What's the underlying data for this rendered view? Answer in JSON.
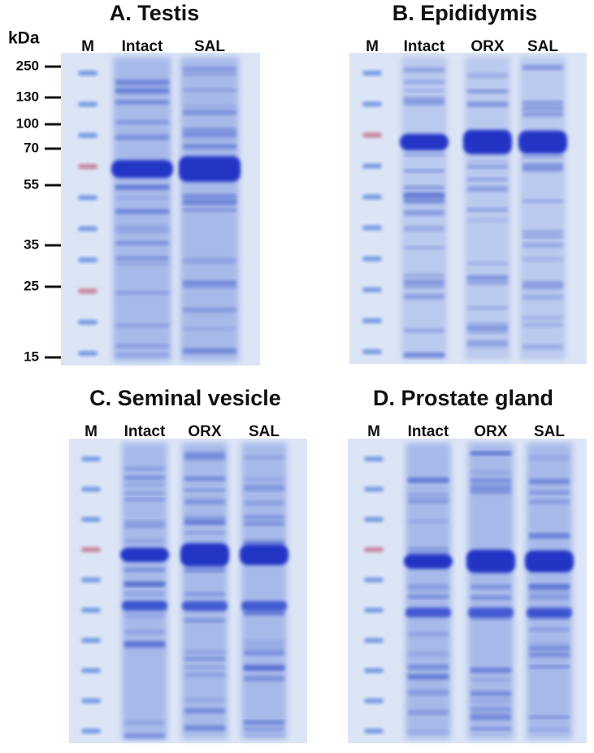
{
  "kda_unit": "kDa",
  "markers": [
    "250",
    "130",
    "100",
    "70",
    "55",
    "35",
    "25",
    "15"
  ],
  "panels": [
    {
      "title": "A. Testis",
      "lanes": [
        "M",
        "Intact",
        "SAL"
      ]
    },
    {
      "title": "B. Epididymis",
      "lanes": [
        "M",
        "Intact",
        "ORX",
        "SAL"
      ]
    },
    {
      "title": "C. Seminal vesicle",
      "lanes": [
        "M",
        "Intact",
        "ORX",
        "SAL"
      ]
    },
    {
      "title": "D. Prostate gland",
      "lanes": [
        "M",
        "Intact",
        "ORX",
        "SAL"
      ]
    }
  ]
}
